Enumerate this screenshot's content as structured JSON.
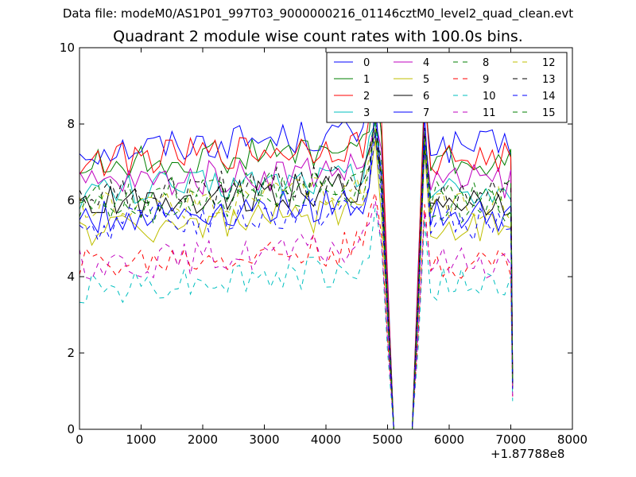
{
  "figure": {
    "suptitle": "Data file: modeM0/AS1P01_997T03_9000000216_01146cztM0_level2_quad_clean.evt",
    "title": "Quadrant 2 module wise count rates with 100.0s bins.",
    "x_offset_label": "+1.87788e8"
  },
  "chart_data": {
    "type": "line",
    "title": "Quadrant 2 module wise count rates with 100.0s bins.",
    "xlabel": "",
    "ylabel": "",
    "xlim": [
      0,
      8000
    ],
    "ylim": [
      0,
      10
    ],
    "x_offset": "+1.87788e8",
    "xticks": [
      0,
      1000,
      2000,
      3000,
      4000,
      5000,
      6000,
      7000,
      8000
    ],
    "yticks": [
      0,
      2,
      4,
      6,
      8,
      10
    ],
    "xtick_labels": [
      "0",
      "1000",
      "2000",
      "3000",
      "4000",
      "5000",
      "6000",
      "7000",
      "8000"
    ],
    "ytick_labels": [
      "0",
      "2",
      "4",
      "6",
      "8",
      "10"
    ],
    "grid": false,
    "legend_position": "top-right",
    "legend_columns": 4,
    "x": [
      0,
      100,
      200,
      300,
      400,
      500,
      600,
      700,
      800,
      900,
      1000,
      1100,
      1200,
      1300,
      1400,
      1500,
      1600,
      1700,
      1800,
      1900,
      2000,
      2100,
      2200,
      2300,
      2400,
      2500,
      2600,
      2700,
      2800,
      2900,
      3000,
      3100,
      3200,
      3300,
      3400,
      3500,
      3600,
      3700,
      3800,
      3900,
      4000,
      4100,
      4200,
      4300,
      4400,
      4500,
      4600,
      4700,
      4800,
      4900,
      5000,
      5100,
      5200,
      5300,
      5400,
      5500,
      5600,
      5700,
      5800,
      5900,
      6000,
      6100,
      6200,
      6300,
      6400,
      6500,
      6600,
      6700,
      6800,
      6900,
      7000,
      7030
    ],
    "series": [
      {
        "name": "0",
        "color": "#0000ff",
        "dash": "solid",
        "base": 7.3,
        "trend": 0.05,
        "peak": 9.0
      },
      {
        "name": "1",
        "color": "#007f00",
        "dash": "solid",
        "base": 6.9,
        "trend": 0.05,
        "peak": 9.4
      },
      {
        "name": "2",
        "color": "#ff0000",
        "dash": "solid",
        "base": 7.0,
        "trend": 0.05,
        "peak": 9.1
      },
      {
        "name": "3",
        "color": "#00bfbf",
        "dash": "solid",
        "base": 6.2,
        "trend": 0.05,
        "peak": 8.0
      },
      {
        "name": "4",
        "color": "#bf00bf",
        "dash": "solid",
        "base": 6.4,
        "trend": 0.05,
        "peak": 8.1
      },
      {
        "name": "5",
        "color": "#bfbf00",
        "dash": "solid",
        "base": 5.2,
        "trend": 0.05,
        "peak": 7.6
      },
      {
        "name": "6",
        "color": "#000000",
        "dash": "solid",
        "base": 5.9,
        "trend": 0.05,
        "peak": 7.7
      },
      {
        "name": "7",
        "color": "#0000ff",
        "dash": "solid",
        "base": 5.5,
        "trend": 0.05,
        "peak": 8.6
      },
      {
        "name": "8",
        "color": "#007f00",
        "dash": "dashed",
        "base": 5.7,
        "trend": 0.05,
        "peak": 7.9
      },
      {
        "name": "9",
        "color": "#ff0000",
        "dash": "dashed",
        "base": 4.3,
        "trend": 0.05,
        "peak": 6.2
      },
      {
        "name": "10",
        "color": "#00bfbf",
        "dash": "dashed",
        "base": 3.7,
        "trend": 0.05,
        "peak": 5.8
      },
      {
        "name": "11",
        "color": "#bf00bf",
        "dash": "dashed",
        "base": 4.3,
        "trend": 0.05,
        "peak": 6.0
      },
      {
        "name": "12",
        "color": "#bfbf00",
        "dash": "dashed",
        "base": 5.8,
        "trend": 0.05,
        "peak": 7.9
      },
      {
        "name": "13",
        "color": "#000000",
        "dash": "dashed",
        "base": 6.1,
        "trend": 0.05,
        "peak": 8.2
      },
      {
        "name": "14",
        "color": "#0000ff",
        "dash": "dashed",
        "base": 5.3,
        "trend": 0.05,
        "peak": 7.8
      },
      {
        "name": "15",
        "color": "#007f00",
        "dash": "dashed",
        "base": 6.0,
        "trend": 0.05,
        "peak": 8.1
      }
    ]
  }
}
